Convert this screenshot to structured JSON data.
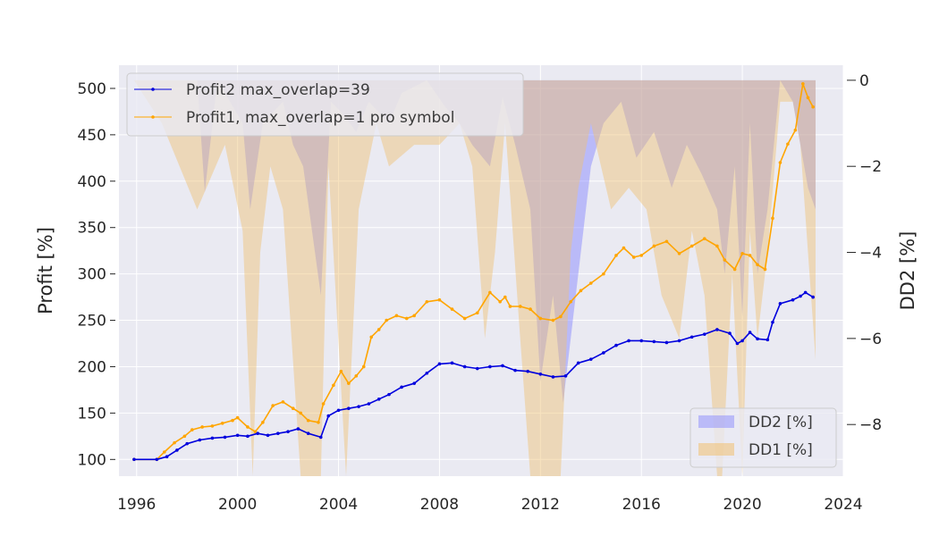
{
  "chart_data": {
    "type": "line",
    "xlim": [
      1995.3,
      2024.0
    ],
    "ylim": [
      82,
      525
    ],
    "y2lim": [
      -9.2,
      0.35
    ],
    "x_ticks": [
      1996,
      2000,
      2004,
      2008,
      2012,
      2016,
      2020,
      2024
    ],
    "x_tick_labels": [
      "1996",
      "2000",
      "2004",
      "2008",
      "2012",
      "2016",
      "2020",
      "2024"
    ],
    "y_ticks": [
      100,
      150,
      200,
      250,
      300,
      350,
      400,
      450,
      500
    ],
    "y_tick_labels": [
      "100",
      "150",
      "200",
      "250",
      "300",
      "350",
      "400",
      "450",
      "500"
    ],
    "y2_ticks": [
      0,
      -2,
      -4,
      -6,
      -8
    ],
    "y2_tick_labels": [
      "0",
      "−2",
      "−4",
      "−6",
      "−8"
    ],
    "ylabel": "Profit [%]",
    "y2label": "DD2 [%]",
    "grid": true,
    "legend_upper_position": "top-left",
    "legend_lower_position": "bottom-right",
    "series": [
      {
        "name": "Profit2 max_overlap=39",
        "color": "#0000dd",
        "x": [
          1995.9,
          1996.8,
          1997.2,
          1997.6,
          1998.0,
          1998.5,
          1999.0,
          1999.5,
          2000.0,
          2000.4,
          2000.8,
          2001.2,
          2001.6,
          2002.0,
          2002.4,
          2002.8,
          2003.3,
          2003.6,
          2004.0,
          2004.4,
          2004.8,
          2005.2,
          2005.6,
          2006.0,
          2006.5,
          2007.0,
          2007.5,
          2008.0,
          2008.5,
          2009.0,
          2009.5,
          2010.0,
          2010.5,
          2011.0,
          2011.5,
          2012.0,
          2012.5,
          2013.0,
          2013.5,
          2014.0,
          2014.5,
          2015.0,
          2015.5,
          2016.0,
          2016.5,
          2017.0,
          2017.5,
          2018.0,
          2018.5,
          2019.0,
          2019.5,
          2019.8,
          2020.0,
          2020.3,
          2020.6,
          2021.0,
          2021.2,
          2021.5,
          2022.0,
          2022.3,
          2022.5,
          2022.8
        ],
        "y": [
          100,
          100,
          103,
          110,
          117,
          121,
          123,
          124,
          126,
          125,
          128,
          126,
          128,
          130,
          133,
          128,
          124,
          147,
          153,
          155,
          157,
          160,
          165,
          170,
          178,
          182,
          193,
          203,
          204,
          200,
          198,
          200,
          201,
          196,
          195,
          192,
          189,
          190,
          204,
          208,
          215,
          223,
          228,
          228,
          227,
          226,
          228,
          232,
          235,
          240,
          236,
          225,
          228,
          237,
          230,
          229,
          248,
          268,
          272,
          276,
          280,
          275
        ]
      },
      {
        "name": "Profit1, max_overlap=1 pro symbol",
        "color": "#ffa500",
        "x": [
          1995.9,
          1996.8,
          1997.1,
          1997.5,
          1997.9,
          1998.2,
          1998.6,
          1999.0,
          1999.4,
          1999.8,
          2000.0,
          2000.4,
          2000.7,
          2001.0,
          2001.4,
          2001.8,
          2002.2,
          2002.5,
          2002.8,
          2003.2,
          2003.4,
          2003.8,
          2004.1,
          2004.4,
          2004.7,
          2005.0,
          2005.3,
          2005.6,
          2005.9,
          2006.3,
          2006.7,
          2007.0,
          2007.5,
          2008.0,
          2008.5,
          2009.0,
          2009.5,
          2010.0,
          2010.4,
          2010.6,
          2010.8,
          2011.2,
          2011.6,
          2012.0,
          2012.5,
          2012.8,
          2013.2,
          2013.6,
          2014.0,
          2014.5,
          2015.0,
          2015.3,
          2015.7,
          2016.0,
          2016.5,
          2017.0,
          2017.5,
          2018.0,
          2018.5,
          2019.0,
          2019.3,
          2019.7,
          2020.0,
          2020.3,
          2020.6,
          2020.9,
          2021.2,
          2021.5,
          2021.8,
          2022.1,
          2022.4,
          2022.6,
          2022.8
        ],
        "y": [
          100,
          100,
          108,
          118,
          125,
          132,
          135,
          136,
          139,
          142,
          145,
          135,
          130,
          140,
          158,
          162,
          155,
          150,
          142,
          140,
          160,
          180,
          195,
          182,
          190,
          200,
          232,
          240,
          250,
          255,
          252,
          255,
          270,
          272,
          262,
          252,
          258,
          280,
          270,
          275,
          265,
          265,
          262,
          252,
          250,
          254,
          270,
          282,
          290,
          300,
          320,
          328,
          318,
          320,
          330,
          335,
          322,
          330,
          338,
          330,
          315,
          305,
          322,
          320,
          310,
          305,
          360,
          420,
          440,
          455,
          505,
          490,
          480
        ]
      }
    ],
    "drawdown_series": [
      {
        "name": "DD2 [%]",
        "color": "#8080ff",
        "x": [
          1995.9,
          1998.4,
          1998.7,
          1999.2,
          2000.2,
          2000.5,
          2001.0,
          2001.8,
          2002.2,
          2002.6,
          2003.3,
          2003.7,
          2004.2,
          2004.7,
          2005.2,
          2006.0,
          2006.5,
          2007.5,
          2008.2,
          2008.8,
          2009.3,
          2010.0,
          2010.5,
          2011.0,
          2011.6,
          2012.0,
          2012.5,
          2012.9,
          2013.3,
          2014.0,
          2014.5,
          2015.2,
          2015.8,
          2016.5,
          2017.2,
          2017.8,
          2018.4,
          2019.0,
          2019.3,
          2019.7,
          2020.0,
          2020.3,
          2020.6,
          2021.0,
          2021.5,
          2022.0,
          2022.3,
          2022.6,
          2022.9
        ],
        "y": [
          0,
          0,
          -2.6,
          0,
          -1.0,
          -3.0,
          -1.0,
          -0.5,
          -1.5,
          -2.0,
          -5.0,
          -0.5,
          -0.8,
          -1.2,
          -0.5,
          -1.0,
          -0.3,
          0,
          -0.6,
          -1.0,
          -1.5,
          -2.0,
          -0.4,
          -1.5,
          -3.0,
          -7.0,
          -5.0,
          -7.5,
          -5.5,
          -2.0,
          -1.0,
          -0.5,
          -1.8,
          -1.2,
          -2.5,
          -1.5,
          -2.2,
          -3.0,
          -4.5,
          -2.0,
          -5.5,
          -1.0,
          -4.5,
          -3.0,
          0,
          -0.5,
          -1.5,
          -2.5,
          -3.0
        ]
      },
      {
        "name": "DD1 [%]",
        "color": "#f0c070",
        "x": [
          1995.9,
          1997.0,
          1998.4,
          1999.5,
          2000.2,
          2000.6,
          2000.9,
          2001.3,
          2001.8,
          2002.5,
          2003.3,
          2003.6,
          2004.3,
          2004.8,
          2005.5,
          2006.0,
          2007.0,
          2008.0,
          2008.8,
          2009.3,
          2009.8,
          2010.2,
          2010.6,
          2011.2,
          2011.6,
          2012.3,
          2012.8,
          2013.2,
          2013.5,
          2014.0,
          2014.8,
          2015.5,
          2016.2,
          2016.8,
          2017.5,
          2018.0,
          2018.5,
          2019.0,
          2019.2,
          2019.6,
          2020.0,
          2020.3,
          2020.6,
          2021.0,
          2021.5,
          2022.0,
          2022.3,
          2022.6,
          2022.9
        ],
        "y": [
          0,
          -1.0,
          -3.0,
          -1.5,
          -3.5,
          -9.2,
          -4.0,
          -2.0,
          -3.0,
          -9.2,
          -9.2,
          -2.0,
          -9.2,
          -3.0,
          -1.0,
          -2.0,
          -1.5,
          -1.5,
          -1.0,
          -2.0,
          -6.0,
          -4.0,
          -1.0,
          -6.0,
          -9.2,
          -9.2,
          -9.2,
          -4.0,
          -2.5,
          -1.0,
          -3.0,
          -2.5,
          -3.0,
          -5.0,
          -6.0,
          -3.5,
          -5.0,
          -9.2,
          -9.2,
          -4.5,
          -9.2,
          -3.5,
          -6.0,
          -4.0,
          -0.5,
          -0.5,
          -1.5,
          -4.0,
          -6.5
        ]
      }
    ]
  }
}
